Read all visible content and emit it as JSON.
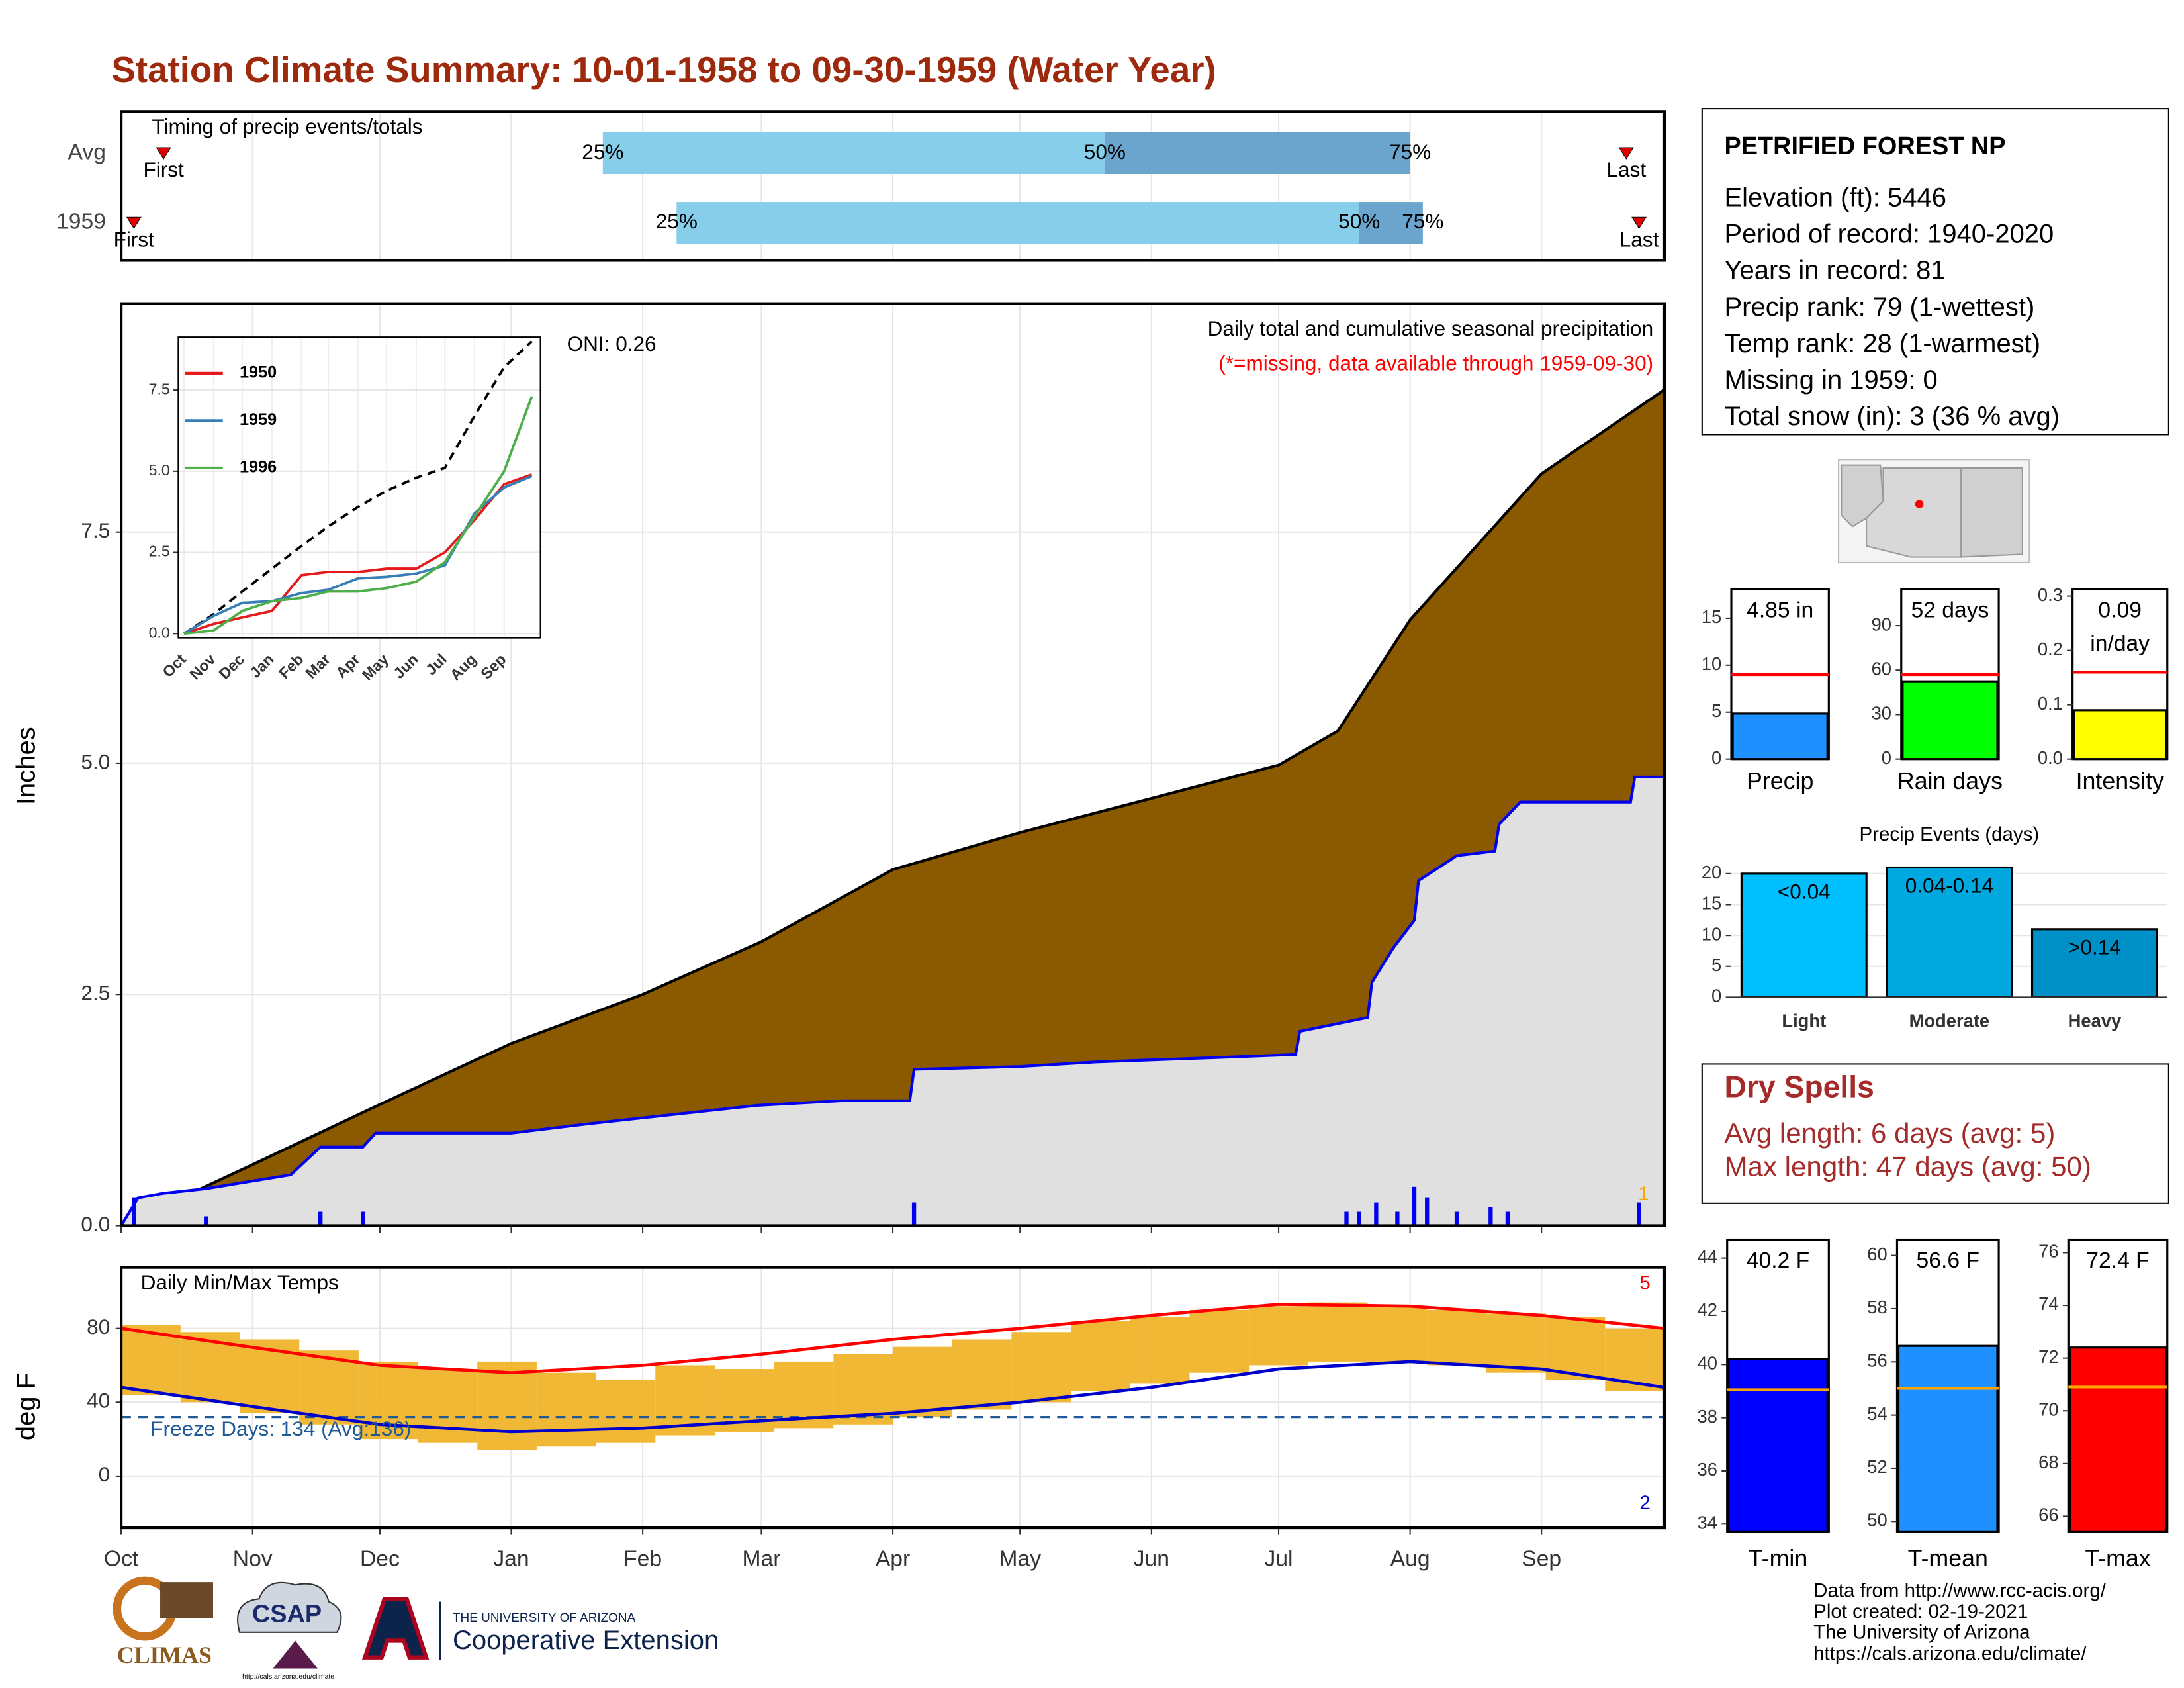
{
  "title": "Station Climate Summary: 10-01-1958 to 09-30-1959 (Water Year)",
  "chart_data": [
    {
      "type": "timing",
      "title": "Timing of precip events/totals",
      "categories": [
        "Avg",
        "1959"
      ],
      "xlim": [
        0,
        364
      ],
      "series": [
        {
          "name": "First",
          "values": [
            10,
            3
          ]
        },
        {
          "name": "25%",
          "values": [
            113.6,
            131
          ]
        },
        {
          "name": "50%",
          "values": [
            232,
            292
          ]
        },
        {
          "name": "75%",
          "values": [
            304,
            307
          ]
        },
        {
          "name": "Last",
          "values": [
            355,
            358
          ]
        }
      ],
      "bar_colors": [
        "#87ceeb",
        "#6ba4cc"
      ],
      "marker_color": "#e00000"
    },
    {
      "type": "area",
      "title": "Daily total and cumulative seasonal precipitation",
      "subtitle": "(*=missing, data available through 1959-09-30)",
      "annotation": "ONI: 0.26",
      "corner_label": "1",
      "corner_color": "#ffa500",
      "y_label": "Inches",
      "xlim": [
        0,
        364
      ],
      "ylim": [
        0,
        9.97
      ],
      "yticks": [
        {
          "value": 0,
          "label": "0.0"
        },
        2.5,
        {
          "value": 5,
          "label": "5.0"
        },
        7.5
      ],
      "grid": true,
      "series": [
        {
          "color": "#8b5a00",
          "line_color": "#000000",
          "x": [
            0,
            31,
            61,
            92,
            123,
            151,
            182,
            212,
            243,
            273,
            287,
            304,
            335,
            364
          ],
          "values": [
            0,
            0.66,
            1.31,
            1.97,
            2.5,
            3.07,
            3.85,
            4.25,
            4.62,
            4.98,
            5.35,
            6.55,
            8.13,
            9.04
          ]
        },
        {
          "color": "#e0e0e0",
          "line_color": "#0000ee",
          "x": [
            0,
            4,
            10,
            20,
            40,
            47,
            57,
            60,
            70,
            92,
            110,
            130,
            150,
            170,
            186,
            187,
            212,
            230,
            260,
            277,
            278,
            294,
            295,
            300,
            305,
            306,
            315,
            324,
            325,
            330,
            356,
            357,
            364
          ],
          "values": [
            0,
            0.3,
            0.35,
            0.4,
            0.55,
            0.85,
            0.85,
            1.0,
            1.0,
            1.0,
            1.1,
            1.2,
            1.3,
            1.35,
            1.35,
            1.69,
            1.72,
            1.77,
            1.82,
            1.85,
            2.1,
            2.25,
            2.63,
            3.0,
            3.3,
            3.73,
            4.0,
            4.05,
            4.34,
            4.58,
            4.58,
            4.85,
            4.85
          ]
        }
      ],
      "daily": {
        "color": "#0000ee",
        "x": [
          3,
          20,
          47,
          57,
          187,
          289,
          292,
          296,
          301,
          305,
          308,
          315,
          323,
          327,
          358
        ],
        "values": [
          0.3,
          0.1,
          0.15,
          0.15,
          0.25,
          0.15,
          0.15,
          0.25,
          0.15,
          0.42,
          0.3,
          0.15,
          0.2,
          0.15,
          0.25
        ]
      }
    },
    {
      "type": "line",
      "xlim": [
        -6,
        373
      ],
      "ylim": [
        -0.13,
        9.13
      ],
      "x": [
        0,
        31,
        61,
        92,
        123,
        151,
        182,
        212,
        243,
        273,
        304,
        335,
        364
      ],
      "xticks": [
        {
          "value": 0,
          "label": "Oct"
        },
        {
          "value": 31,
          "label": "Nov"
        },
        {
          "value": 61,
          "label": "Dec"
        },
        {
          "value": 92,
          "label": "Jan"
        },
        {
          "value": 123,
          "label": "Feb"
        },
        {
          "value": 151,
          "label": "Mar"
        },
        {
          "value": 182,
          "label": "Apr"
        },
        {
          "value": 212,
          "label": "May"
        },
        {
          "value": 243,
          "label": "Jun"
        },
        {
          "value": 273,
          "label": "Jul"
        },
        {
          "value": 304,
          "label": "Aug"
        },
        {
          "value": 335,
          "label": "Sep"
        }
      ],
      "yticks": [
        {
          "value": 0,
          "label": "0.0"
        },
        2.5,
        {
          "value": 5,
          "label": "5.0"
        },
        7.5
      ],
      "grid": true,
      "series": [
        {
          "color": "#000000",
          "dash": true,
          "values": [
            0,
            0.6,
            1.3,
            2.0,
            2.7,
            3.3,
            3.9,
            4.4,
            4.8,
            5.1,
            6.7,
            8.2,
            9.0
          ]
        },
        {
          "name": "1950",
          "color": "#e41a1c",
          "values": [
            0,
            0.3,
            0.5,
            0.7,
            1.8,
            1.9,
            1.9,
            2.0,
            2.0,
            2.5,
            3.5,
            4.6,
            4.9
          ]
        },
        {
          "name": "1959",
          "color": "#377eb8",
          "values": [
            0,
            0.55,
            0.95,
            1.0,
            1.25,
            1.35,
            1.7,
            1.75,
            1.85,
            2.1,
            3.7,
            4.5,
            4.85
          ]
        },
        {
          "name": "1996",
          "color": "#4daf4a",
          "values": [
            0,
            0.1,
            0.7,
            1.0,
            1.1,
            1.3,
            1.3,
            1.4,
            1.6,
            2.2,
            3.6,
            5.0,
            7.3
          ]
        }
      ]
    },
    {
      "type": "temp",
      "title": "Daily Min/Max Temps",
      "y_label": "deg F",
      "xlim": [
        0,
        364
      ],
      "ylim": [
        -28,
        113
      ],
      "yticks": [
        0,
        40,
        80
      ],
      "grid": true,
      "xticks": [
        {
          "value": 0,
          "label": "Oct"
        },
        {
          "value": 31,
          "label": "Nov"
        },
        {
          "value": 61,
          "label": "Dec"
        },
        {
          "value": 92,
          "label": "Jan"
        },
        {
          "value": 123,
          "label": "Feb"
        },
        {
          "value": 151,
          "label": "Mar"
        },
        {
          "value": 182,
          "label": "Apr"
        },
        {
          "value": 212,
          "label": "May"
        },
        {
          "value": 243,
          "label": "Jun"
        },
        {
          "value": 273,
          "label": "Jul"
        },
        {
          "value": 304,
          "label": "Aug"
        },
        {
          "value": 335,
          "label": "Sep"
        }
      ],
      "range": {
        "color": "#f0b020",
        "width": 14,
        "x": [
          0,
          14,
          28,
          42,
          56,
          70,
          84,
          98,
          112,
          126,
          140,
          154,
          168,
          182,
          196,
          210,
          224,
          238,
          252,
          266,
          280,
          294,
          308,
          322,
          336,
          350
        ],
        "high": [
          82,
          78,
          74,
          68,
          62,
          58,
          62,
          56,
          52,
          60,
          58,
          62,
          66,
          70,
          74,
          78,
          84,
          86,
          90,
          92,
          94,
          92,
          90,
          88,
          86,
          80
        ],
        "low": [
          44,
          40,
          34,
          28,
          20,
          18,
          14,
          16,
          18,
          22,
          24,
          26,
          28,
          32,
          36,
          40,
          46,
          50,
          56,
          60,
          62,
          62,
          60,
          56,
          52,
          46
        ]
      },
      "series": [
        {
          "color": "#ff0000",
          "x": [
            0,
            30,
            61,
            92,
            123,
            151,
            182,
            212,
            243,
            273,
            304,
            335,
            364
          ],
          "values": [
            80,
            70,
            60,
            56,
            60,
            66,
            74,
            80,
            87,
            93,
            92,
            87,
            80
          ]
        },
        {
          "color": "#0000cc",
          "x": [
            0,
            30,
            61,
            92,
            123,
            151,
            182,
            212,
            243,
            273,
            304,
            335,
            364
          ],
          "values": [
            48,
            38,
            28,
            24,
            26,
            30,
            34,
            40,
            48,
            58,
            62,
            58,
            48
          ]
        }
      ],
      "freeze_line": 32,
      "freeze_color": "#1f5a96",
      "freeze_label": "Freeze Days: 134 (Avg:136)",
      "top_label": "5",
      "top_color": "#ff0000",
      "bottom_label": "2",
      "bottom_color": "#0000cc"
    },
    {
      "type": "bar",
      "categories": [
        "Precip"
      ],
      "values": [
        4.85
      ],
      "value_labels": [
        "4.85 in"
      ],
      "color": "#1e90ff",
      "average": 9.0,
      "average_color": "#ff0000",
      "ylim": [
        0,
        18.1
      ],
      "yticks": [
        0,
        5,
        10,
        15
      ]
    },
    {
      "type": "bar",
      "categories": [
        "Rain days"
      ],
      "values": [
        52
      ],
      "value_labels": [
        "52 days"
      ],
      "color": "#00ff00",
      "average": 57,
      "average_color": "#ff0000",
      "ylim": [
        0,
        114.6
      ],
      "yticks": [
        0,
        30,
        60,
        90
      ]
    },
    {
      "type": "bar",
      "categories": [
        "Intensity"
      ],
      "values": [
        0.09
      ],
      "value_labels": [
        "0.09 in/day"
      ],
      "color": "#ffff00",
      "average": 0.16,
      "average_color": "#ff0000",
      "ylim": [
        0,
        0.313
      ],
      "yticks": [
        {
          "value": 0,
          "label": "0.0"
        },
        0.1,
        0.2,
        0.3
      ]
    },
    {
      "type": "bar",
      "title": "Precip Events (days)",
      "categories": [
        "Light",
        "Moderate",
        "Heavy"
      ],
      "values": [
        20,
        21,
        11
      ],
      "value_labels": [
        "<0.04",
        "0.04-0.14",
        ">0.14"
      ],
      "colors": [
        "#00bfff",
        "#00a8e0",
        "#0090c8"
      ],
      "ylim": [
        0,
        22.1
      ],
      "yticks": [
        0,
        5,
        10,
        15,
        20
      ],
      "grid": true
    },
    {
      "type": "bar",
      "categories": [
        "T-min"
      ],
      "values": [
        40.2
      ],
      "value_labels": [
        "40.2 F"
      ],
      "color": "#0000ff",
      "average": 39.05,
      "average_color": "#ffa500",
      "ylim": [
        33.7,
        44.7
      ],
      "yticks": [
        34,
        36,
        38,
        40,
        42,
        44
      ]
    },
    {
      "type": "bar",
      "categories": [
        "T-mean"
      ],
      "values": [
        56.6
      ],
      "value_labels": [
        "56.6 F"
      ],
      "color": "#1e90ff",
      "average": 55.0,
      "average_color": "#ffa500",
      "ylim": [
        49.6,
        60.6
      ],
      "yticks": [
        50,
        52,
        54,
        56,
        58,
        60
      ]
    },
    {
      "type": "bar",
      "categories": [
        "T-max"
      ],
      "values": [
        72.4
      ],
      "value_labels": [
        "72.4 F"
      ],
      "color": "#ff0000",
      "average": 70.9,
      "average_color": "#ffa500",
      "ylim": [
        65.4,
        76.5
      ],
      "yticks": [
        66,
        68,
        70,
        72,
        74,
        76
      ]
    }
  ],
  "station": {
    "name": "PETRIFIED FOREST NP",
    "lines": [
      "Elevation (ft): 5446",
      "Period of record: 1940-2020",
      "Years in record: 81",
      "Precip rank: 79 (1-wettest)",
      "Temp rank: 28 (1-warmest)",
      "Missing in 1959: 0",
      "Total snow (in): 3 (36 % avg)"
    ]
  },
  "dry_spells": {
    "title": "Dry Spells",
    "lines": [
      "Avg length: 6 days (avg: 5)",
      "Max length: 47 days (avg: 50)"
    ]
  },
  "footer": [
    "Data from http://www.rcc-acis.org/",
    "Plot created: 02-19-2021",
    "The University of Arizona",
    "https://cals.arizona.edu/climate/"
  ],
  "logos": {
    "climas": "CLIMAS",
    "csap": "CSAP",
    "csap_url": "http://cals.arizona.edu/climate",
    "ua_top": "THE UNIVERSITY OF ARIZONA",
    "ua_name": "Cooperative Extension"
  }
}
